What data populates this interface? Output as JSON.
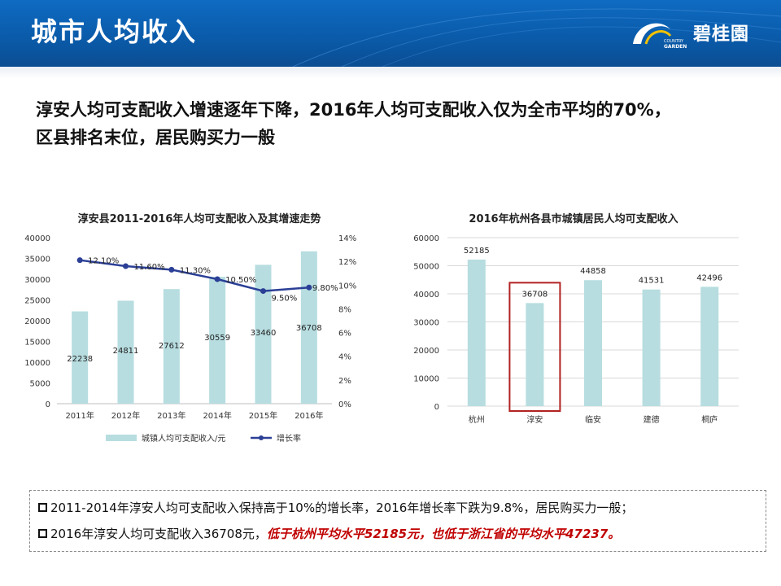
{
  "header": {
    "title": "城市人均收入",
    "logo_text": "碧桂園",
    "logo_small_1": "COUNTRY",
    "logo_small_2": "GARDEN"
  },
  "headline": {
    "line1": "淳安人均可支配收入增速逐年下降，2016年人均可支配收入仅为全市平均的70%，",
    "line2": "区县排名末位，居民购买力一般"
  },
  "colors": {
    "bar": "#b7dde0",
    "line": "#2b3f96",
    "highlight_box": "#b22222",
    "emphasis": "#c00000"
  },
  "chart_data": [
    {
      "type": "bar",
      "title": "淳安县2011-2016年人均可支配收入及其增速走势",
      "categories": [
        "2011年",
        "2012年",
        "2013年",
        "2014年",
        "2015年",
        "2016年"
      ],
      "series": [
        {
          "name": "城镇人均可支配收入/元",
          "type": "bar",
          "axis": "left",
          "values": [
            22238,
            24811,
            27612,
            30559,
            33460,
            36708
          ],
          "labels": [
            "22238",
            "24811",
            "27612",
            "30559",
            "33460",
            "36708"
          ]
        },
        {
          "name": "增长率",
          "type": "line",
          "axis": "right",
          "values": [
            12.1,
            11.6,
            11.3,
            10.5,
            9.5,
            9.8
          ],
          "labels": [
            "12.10%",
            "11.60%",
            "11.30%",
            "10.50%",
            "9.50%",
            "9.80%"
          ]
        }
      ],
      "ylim": [
        0,
        40000
      ],
      "y_ticks": [
        "0",
        "5000",
        "10000",
        "15000",
        "20000",
        "25000",
        "30000",
        "35000",
        "40000"
      ],
      "y2lim": [
        0,
        14
      ],
      "y2_ticks": [
        "0%",
        "2%",
        "4%",
        "6%",
        "8%",
        "10%",
        "12%",
        "14%"
      ],
      "legend": "bottom"
    },
    {
      "type": "bar",
      "title": "2016年杭州各县市城镇居民人均可支配收入",
      "categories": [
        "杭州",
        "淳安",
        "临安",
        "建德",
        "桐庐"
      ],
      "values": [
        52185,
        36708,
        44858,
        41531,
        42496
      ],
      "labels": [
        "52185",
        "36708",
        "44858",
        "41531",
        "42496"
      ],
      "highlight": "淳安",
      "ylim": [
        0,
        60000
      ],
      "y_ticks": [
        "0",
        "10000",
        "20000",
        "30000",
        "40000",
        "50000",
        "60000"
      ]
    }
  ],
  "notes": {
    "line1": "2011-2014年淳安人均可支配收入保持高于10%的增长率，2016年增长率下跌为9.8%，居民购买力一般；",
    "line2_prefix": "2016年淳安人均可支配收入36708元，",
    "line2_emph": "低于杭州平均水平52185元，也低于浙江省的平均水平47237。"
  }
}
